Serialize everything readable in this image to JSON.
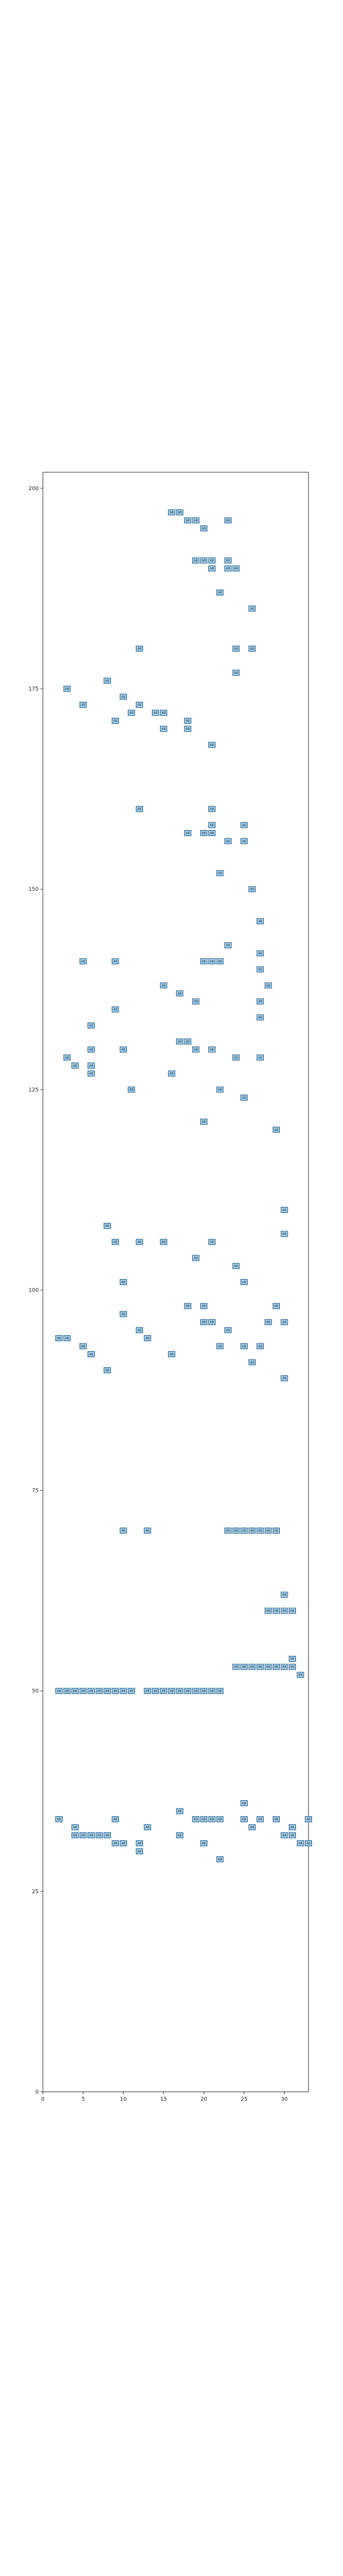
{
  "chart_data": {
    "type": "scatter",
    "title": "",
    "xlabel": "",
    "ylabel": "",
    "xlim": [
      0,
      33
    ],
    "ylim": [
      0,
      202
    ],
    "x_ticks": [
      0,
      5,
      10,
      15,
      20,
      25,
      30
    ],
    "y_ticks": [
      0,
      25,
      50,
      75,
      100,
      125,
      150,
      175,
      200
    ],
    "x_tick_labels": [
      "0",
      "5",
      "10",
      "15",
      "20",
      "25",
      "30"
    ],
    "y_tick_labels": [
      "0",
      "25",
      "50",
      "75",
      "100",
      "125",
      "150",
      "175",
      "200"
    ],
    "grid": false,
    "marker": "square-with-text",
    "marker_label": "AB",
    "colors": {
      "marker_fill": "#a9cfe8",
      "marker_edge": "#1f5f8b",
      "axis": "#333333"
    },
    "points": [
      [
        16,
        197
      ],
      [
        17,
        197
      ],
      [
        18,
        196
      ],
      [
        19,
        196
      ],
      [
        23,
        196
      ],
      [
        20,
        195
      ],
      [
        19,
        191
      ],
      [
        20,
        191
      ],
      [
        21,
        191
      ],
      [
        23,
        191
      ],
      [
        21,
        190
      ],
      [
        23,
        190
      ],
      [
        24,
        190
      ],
      [
        22,
        187
      ],
      [
        26,
        185
      ],
      [
        12,
        180
      ],
      [
        24,
        180
      ],
      [
        26,
        180
      ],
      [
        24,
        177
      ],
      [
        8,
        176
      ],
      [
        3,
        175
      ],
      [
        10,
        174
      ],
      [
        5,
        173
      ],
      [
        12,
        173
      ],
      [
        14,
        172
      ],
      [
        15,
        172
      ],
      [
        11,
        172
      ],
      [
        9,
        171
      ],
      [
        18,
        171
      ],
      [
        15,
        170
      ],
      [
        18,
        170
      ],
      [
        21,
        168
      ],
      [
        12,
        160
      ],
      [
        21,
        160
      ],
      [
        21,
        158
      ],
      [
        25,
        158
      ],
      [
        20,
        157
      ],
      [
        21,
        157
      ],
      [
        18,
        157
      ],
      [
        23,
        156
      ],
      [
        25,
        156
      ],
      [
        22,
        152
      ],
      [
        26,
        150
      ],
      [
        27,
        146
      ],
      [
        23,
        143
      ],
      [
        27,
        142
      ],
      [
        5,
        141
      ],
      [
        9,
        141
      ],
      [
        20,
        141
      ],
      [
        21,
        141
      ],
      [
        22,
        141
      ],
      [
        27,
        140
      ],
      [
        28,
        138
      ],
      [
        15,
        138
      ],
      [
        17,
        137
      ],
      [
        19,
        136
      ],
      [
        27,
        136
      ],
      [
        9,
        135
      ],
      [
        27,
        134
      ],
      [
        6,
        133
      ],
      [
        17,
        131
      ],
      [
        18,
        131
      ],
      [
        19,
        130
      ],
      [
        6,
        130
      ],
      [
        10,
        130
      ],
      [
        21,
        130
      ],
      [
        3,
        129
      ],
      [
        24,
        129
      ],
      [
        27,
        129
      ],
      [
        4,
        128
      ],
      [
        6,
        128
      ],
      [
        6,
        127
      ],
      [
        16,
        127
      ],
      [
        11,
        125
      ],
      [
        22,
        125
      ],
      [
        25,
        124
      ],
      [
        20,
        121
      ],
      [
        29,
        120
      ],
      [
        30,
        110
      ],
      [
        8,
        108
      ],
      [
        30,
        107
      ],
      [
        9,
        106
      ],
      [
        12,
        106
      ],
      [
        15,
        106
      ],
      [
        21,
        106
      ],
      [
        19,
        104
      ],
      [
        24,
        103
      ],
      [
        10,
        101
      ],
      [
        25,
        101
      ],
      [
        18,
        98
      ],
      [
        20,
        98
      ],
      [
        29,
        98
      ],
      [
        10,
        97
      ],
      [
        20,
        96
      ],
      [
        21,
        96
      ],
      [
        28,
        96
      ],
      [
        30,
        96
      ],
      [
        12,
        95
      ],
      [
        23,
        95
      ],
      [
        2,
        94
      ],
      [
        3,
        94
      ],
      [
        13,
        94
      ],
      [
        5,
        93
      ],
      [
        22,
        93
      ],
      [
        25,
        93
      ],
      [
        27,
        93
      ],
      [
        6,
        92
      ],
      [
        16,
        92
      ],
      [
        26,
        91
      ],
      [
        8,
        90
      ],
      [
        30,
        89
      ],
      [
        10,
        70
      ],
      [
        13,
        70
      ],
      [
        23,
        70
      ],
      [
        24,
        70
      ],
      [
        25,
        70
      ],
      [
        26,
        70
      ],
      [
        27,
        70
      ],
      [
        28,
        70
      ],
      [
        29,
        70
      ],
      [
        30,
        62
      ],
      [
        28,
        60
      ],
      [
        29,
        60
      ],
      [
        30,
        60
      ],
      [
        31,
        60
      ],
      [
        31,
        54
      ],
      [
        24,
        53
      ],
      [
        25,
        53
      ],
      [
        26,
        53
      ],
      [
        27,
        53
      ],
      [
        28,
        53
      ],
      [
        29,
        53
      ],
      [
        30,
        53
      ],
      [
        31,
        53
      ],
      [
        32,
        52
      ],
      [
        2,
        50
      ],
      [
        3,
        50
      ],
      [
        4,
        50
      ],
      [
        5,
        50
      ],
      [
        6,
        50
      ],
      [
        7,
        50
      ],
      [
        8,
        50
      ],
      [
        9,
        50
      ],
      [
        10,
        50
      ],
      [
        11,
        50
      ],
      [
        13,
        50
      ],
      [
        14,
        50
      ],
      [
        15,
        50
      ],
      [
        16,
        50
      ],
      [
        17,
        50
      ],
      [
        18,
        50
      ],
      [
        19,
        50
      ],
      [
        20,
        50
      ],
      [
        21,
        50
      ],
      [
        22,
        50
      ],
      [
        25,
        36
      ],
      [
        17,
        35
      ],
      [
        2,
        34
      ],
      [
        9,
        34
      ],
      [
        19,
        34
      ],
      [
        20,
        34
      ],
      [
        21,
        34
      ],
      [
        22,
        34
      ],
      [
        25,
        34
      ],
      [
        27,
        34
      ],
      [
        29,
        34
      ],
      [
        33,
        34
      ],
      [
        4,
        33
      ],
      [
        13,
        33
      ],
      [
        26,
        33
      ],
      [
        31,
        33
      ],
      [
        4,
        32
      ],
      [
        5,
        32
      ],
      [
        6,
        32
      ],
      [
        7,
        32
      ],
      [
        8,
        32
      ],
      [
        17,
        32
      ],
      [
        30,
        32
      ],
      [
        31,
        32
      ],
      [
        9,
        31
      ],
      [
        10,
        31
      ],
      [
        12,
        31
      ],
      [
        20,
        31
      ],
      [
        32,
        31
      ],
      [
        33,
        31
      ],
      [
        12,
        30
      ],
      [
        22,
        29
      ]
    ]
  }
}
